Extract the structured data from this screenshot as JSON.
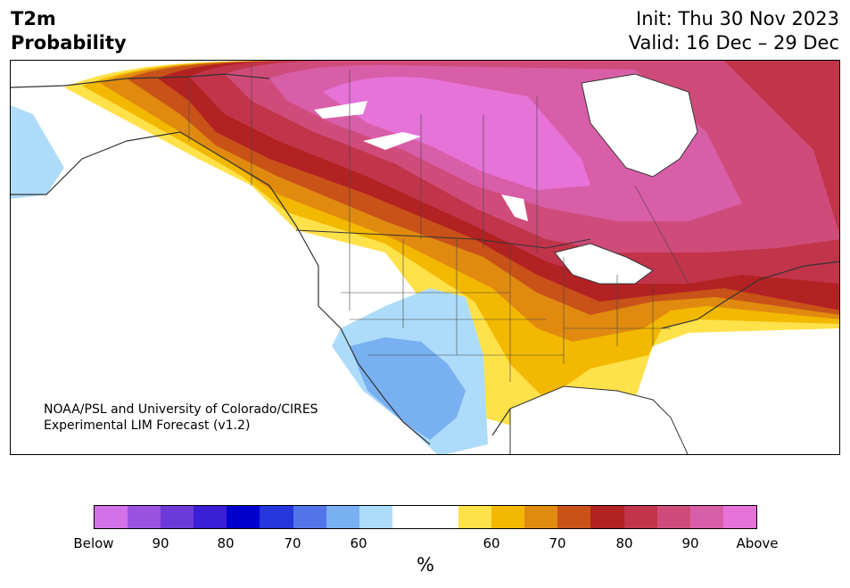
{
  "header": {
    "title_line1": "T2m",
    "title_line2": "Probability",
    "init": "Init: Thu 30 Nov 2023",
    "valid": "Valid: 16 Dec – 29 Dec"
  },
  "credit": {
    "line1": "NOAA/PSL and University of Colorado/CIRES",
    "line2": "Experimental LIM Forecast (v1.2)"
  },
  "colorbar": {
    "colors": [
      "#d470e8",
      "#9a52e0",
      "#6c3ad8",
      "#3a1fd6",
      "#0000cc",
      "#2436dc",
      "#5275e8",
      "#78b0f2",
      "#addcfa",
      "#ffffff",
      "#ffffff",
      "#ffe14a",
      "#f3b800",
      "#e08b10",
      "#c85218",
      "#b32222",
      "#c1344a",
      "#cf4c7a",
      "#d95ea8",
      "#e673d8"
    ],
    "tick_labels": [
      "Below",
      "90",
      "80",
      "70",
      "60",
      "60",
      "70",
      "80",
      "90",
      "Above"
    ],
    "unit": "%"
  }
}
